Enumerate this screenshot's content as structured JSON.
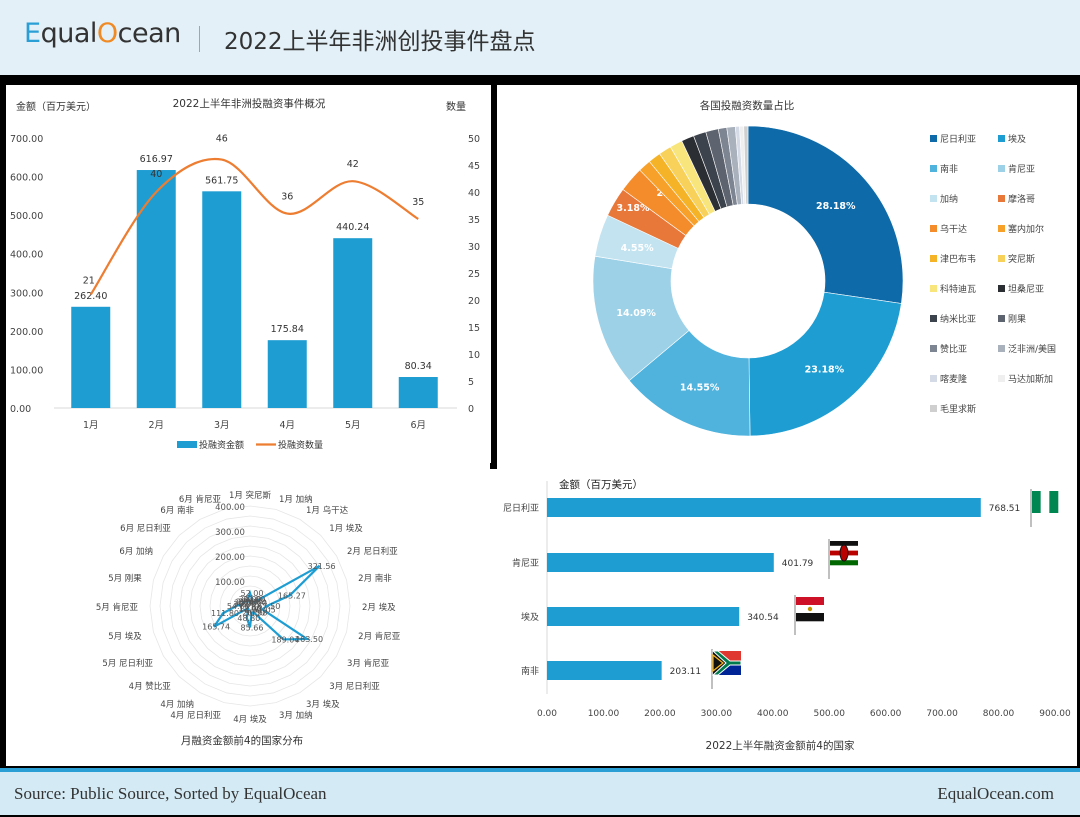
{
  "header": {
    "logo_prefix": "E",
    "logo_mid": "qual",
    "logo_o": "O",
    "logo_suffix": "cean",
    "title": "2022上半年非洲创投事件盘点"
  },
  "footer": {
    "source": "Source: Public Source, Sorted by EqualOcean",
    "site": "EqualOcean.com"
  },
  "colors": {
    "bar": "#1e9dd2",
    "line": "#ed7d31",
    "header_bg": "#e3f0f7",
    "footer_bg": "#d4eaf4",
    "accent": "#2a9fd6"
  },
  "chart_data": [
    {
      "type": "bar",
      "id": "monthly-overview",
      "title": "2022上半年非洲投融资事件概况",
      "ylabel": "金额（百万美元）",
      "y2label": "数量",
      "categories": [
        "1月",
        "2月",
        "3月",
        "4月",
        "5月",
        "6月"
      ],
      "series": [
        {
          "name": "投融资金额",
          "type": "bar",
          "axis": "left",
          "values": [
            262.4,
            616.97,
            561.75,
            175.84,
            440.24,
            80.34
          ],
          "labels": [
            "262.40",
            "616.97",
            "561.75",
            "175.84",
            "440.24",
            "80.34"
          ]
        },
        {
          "name": "投融资数量",
          "type": "line",
          "axis": "right",
          "values": [
            21,
            40,
            46,
            36,
            42,
            35
          ],
          "labels": [
            "21",
            "40",
            "46",
            "36",
            "42",
            "35"
          ]
        }
      ],
      "ylim": [
        0,
        700
      ],
      "y2lim": [
        0,
        50
      ],
      "yticks": [
        "0.00",
        "100.00",
        "200.00",
        "300.00",
        "400.00",
        "500.00",
        "600.00",
        "700.00"
      ],
      "y2ticks": [
        "0",
        "5",
        "10",
        "15",
        "20",
        "25",
        "30",
        "35",
        "40",
        "45",
        "50"
      ],
      "legend": [
        "投融资金额",
        "投融资数量"
      ],
      "legend_position": "bottom"
    },
    {
      "type": "pie",
      "id": "country-share",
      "title": "各国投融资数量占比",
      "donut": true,
      "slices": [
        {
          "label": "尼日利亚",
          "value": 28.18,
          "color": "#0e6aa8",
          "text": "28.18%"
        },
        {
          "label": "埃及",
          "value": 23.18,
          "color": "#1e9dd2",
          "text": "23.18%"
        },
        {
          "label": "南非",
          "value": 14.55,
          "color": "#4fb3de",
          "text": "14.55%"
        },
        {
          "label": "肯尼亚",
          "value": 14.09,
          "color": "#9dd1e8",
          "text": "14.09%"
        },
        {
          "label": "加纳",
          "value": 4.55,
          "color": "#c3e3f1",
          "text": "4.55%"
        },
        {
          "label": "摩洛哥",
          "value": 3.18,
          "color": "#e8783a",
          "text": "3.18%"
        },
        {
          "label": "乌干达",
          "value": 2.73,
          "color": "#f58c2b",
          "text": "2.73%"
        },
        {
          "label": "塞内加尔",
          "value": 1.36,
          "color": "#f7a02a",
          "text": "1.36%"
        },
        {
          "label": "津巴布韦",
          "value": 1.36,
          "color": "#f5b428",
          "text": ""
        },
        {
          "label": "突尼斯",
          "value": 1.36,
          "color": "#f7d15a",
          "text": ""
        },
        {
          "label": "科特迪瓦",
          "value": 1.36,
          "color": "#f8e57c",
          "text": ""
        },
        {
          "label": "坦桑尼亚",
          "value": 1.36,
          "color": "#2b2e33",
          "text": ""
        },
        {
          "label": "纳米比亚",
          "value": 1.36,
          "color": "#3d434c",
          "text": ""
        },
        {
          "label": "刚果",
          "value": 1.36,
          "color": "#5d6470",
          "text": ""
        },
        {
          "label": "赞比亚",
          "value": 0.91,
          "color": "#7d8592",
          "text": ""
        },
        {
          "label": "泛非洲/美国",
          "value": 0.91,
          "color": "#a9b1bd",
          "text": ""
        },
        {
          "label": "喀麦隆",
          "value": 0.45,
          "color": "#d5dbe6",
          "text": ""
        },
        {
          "label": "马达加斯加",
          "value": 0.45,
          "color": "#efefef",
          "text": ""
        },
        {
          "label": "毛里求斯",
          "value": 0.45,
          "color": "#cfcfcf",
          "text": ""
        }
      ],
      "legend_position": "right"
    },
    {
      "type": "radar",
      "id": "monthly-top4",
      "title": "月融资金额前4的国家分布",
      "categories": [
        "1月 突尼斯",
        "1月 加纳",
        "1月 乌干达",
        "1月 埃及",
        "2月 尼日利亚",
        "2月 南非",
        "2月 埃及",
        "2月 肯尼亚",
        "3月 肯尼亚",
        "3月 尼日利亚",
        "3月 埃及",
        "3月 加纳",
        "4月 埃及",
        "4月 尼日利亚",
        "4月 加纳",
        "4月 赞比亚",
        "5月 尼日利亚",
        "5月 埃及",
        "5月 肯尼亚",
        "5月 刚果",
        "6月 加纳",
        "6月 尼日利亚",
        "6月 南非",
        "6月 肯尼亚"
      ],
      "values": [
        52.0,
        30.0,
        20.0,
        19.6,
        321.56,
        165.27,
        67.5,
        51.05,
        263.5,
        189.04,
        30.98,
        26.5,
        85.66,
        48.8,
        12.9,
        12.0,
        165.74,
        111.8,
        54.8,
        30.0,
        30.0,
        26.5,
        20.0,
        30.0
      ],
      "value_labels": [
        "52.00",
        "30.00",
        "20.00",
        "19.60",
        "321.56",
        "165.27",
        "67.50",
        "51.05",
        "263.50",
        "189.04",
        "30.98",
        "26.50",
        "85.66",
        "48.80",
        "12.90",
        "12.00",
        "165.74",
        "111.80",
        "54.80",
        "30.00",
        "30.00",
        "26.50",
        "20.00",
        "30.00"
      ],
      "rlim": [
        0,
        400
      ],
      "rticks": [
        "100.00",
        "200.00",
        "300.00",
        "400.00"
      ]
    },
    {
      "type": "bar",
      "id": "top4-countries",
      "orientation": "horizontal",
      "title": "2022上半年融资金额前4的国家",
      "xlabel": "金额（百万美元）",
      "categories": [
        "尼日利亚",
        "肯尼亚",
        "埃及",
        "南非"
      ],
      "values": [
        768.51,
        401.79,
        340.54,
        203.11
      ],
      "labels": [
        "768.51",
        "401.79",
        "340.54",
        "203.11"
      ],
      "flags": [
        "nigeria-flag",
        "kenya-flag",
        "egypt-flag",
        "south-africa-flag"
      ],
      "xlim": [
        0,
        900
      ],
      "xticks": [
        "0.00",
        "100.00",
        "200.00",
        "300.00",
        "400.00",
        "500.00",
        "600.00",
        "700.00",
        "800.00",
        "900.00"
      ]
    }
  ]
}
